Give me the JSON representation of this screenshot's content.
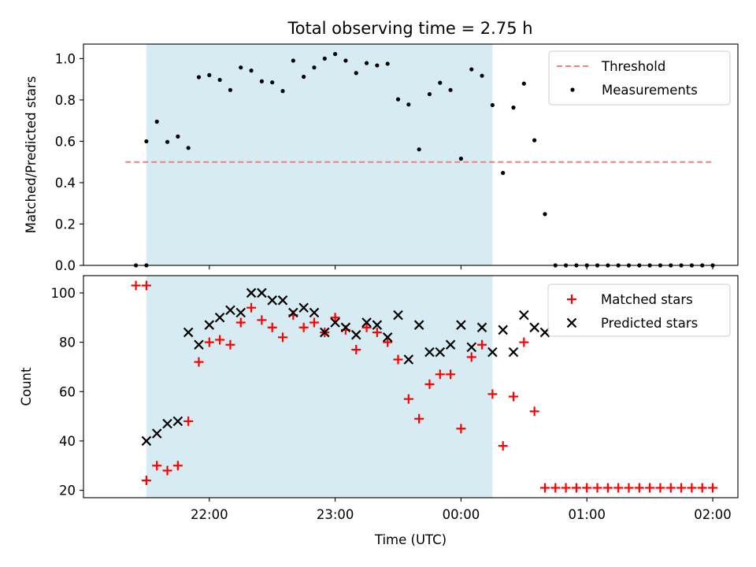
{
  "title": "Total observing time = 2.75 h",
  "chart_data": [
    {
      "type": "scatter",
      "ylabel": "Matched/Predicted stars",
      "ylim": [
        0,
        1.07
      ],
      "yticks": [
        0.0,
        0.2,
        0.4,
        0.6,
        0.8,
        1.0
      ],
      "ytick_labels": [
        "0.0",
        "0.2",
        "0.4",
        "0.6",
        "0.8",
        "1.0"
      ],
      "xticks": [
        "22:00",
        "23:00",
        "00:00",
        "01:00",
        "02:00"
      ],
      "xtick_hours": [
        22,
        23,
        24,
        25,
        26
      ],
      "xlim_hours": [
        21.0,
        26.2
      ],
      "shaded_span_hours": [
        21.5,
        24.25
      ],
      "shade_color": "#add8e6",
      "legend_position": "upper right",
      "threshold": {
        "name": "Threshold",
        "value": 0.5,
        "x_range_hours": [
          21.333,
          26.0
        ],
        "color": "#f08080"
      },
      "series": [
        {
          "name": "Measurements",
          "color": "#000000",
          "x": [
            "21:25",
            "21:30",
            "21:30",
            "21:35",
            "21:40",
            "21:45",
            "21:50",
            "21:55",
            "22:00",
            "22:05",
            "22:10",
            "22:15",
            "22:20",
            "22:25",
            "22:30",
            "22:35",
            "22:40",
            "22:45",
            "22:50",
            "22:55",
            "23:00",
            "23:05",
            "23:10",
            "23:15",
            "23:20",
            "23:25",
            "23:30",
            "23:35",
            "23:40",
            "23:45",
            "23:50",
            "23:55",
            "00:00",
            "00:05",
            "00:10",
            "00:15",
            "00:20",
            "00:25",
            "00:30",
            "00:35",
            "00:40",
            "00:45",
            "00:50",
            "00:55",
            "01:00",
            "01:05",
            "01:10",
            "01:15",
            "01:20",
            "01:25",
            "01:30",
            "01:35",
            "01:40",
            "01:45",
            "01:50",
            "01:55",
            "02:00"
          ],
          "y": [
            0.0,
            0.0,
            0.6,
            0.695,
            0.597,
            0.623,
            0.568,
            0.91,
            0.92,
            0.897,
            0.848,
            0.957,
            0.942,
            0.89,
            0.885,
            0.843,
            0.99,
            0.912,
            0.957,
            1.0,
            1.022,
            0.99,
            0.93,
            0.978,
            0.967,
            0.975,
            0.803,
            0.778,
            0.561,
            0.828,
            0.883,
            0.848,
            0.516,
            0.948,
            0.917,
            0.775,
            0.447,
            0.763,
            0.879,
            0.605,
            0.248,
            0.0,
            0.0,
            0.0,
            0.0,
            0.0,
            0.0,
            0.0,
            0.0,
            0.0,
            0.0,
            0.0,
            0.0,
            0.0,
            0.0,
            0.0,
            0.0
          ]
        }
      ]
    },
    {
      "type": "scatter",
      "xlabel": "Time (UTC)",
      "ylabel": "Count",
      "ylim": [
        17,
        107
      ],
      "yticks": [
        20,
        40,
        60,
        80,
        100
      ],
      "ytick_labels": [
        "20",
        "40",
        "60",
        "80",
        "100"
      ],
      "xticks": [
        "22:00",
        "23:00",
        "00:00",
        "01:00",
        "02:00"
      ],
      "xtick_hours": [
        22,
        23,
        24,
        25,
        26
      ],
      "xlim_hours": [
        21.0,
        26.2
      ],
      "shaded_span_hours": [
        21.5,
        24.25
      ],
      "shade_color": "#add8e6",
      "legend_position": "upper right",
      "series": [
        {
          "name": "Matched stars",
          "marker": "+",
          "color": "#ff0000",
          "x": [
            "21:25",
            "21:30",
            "21:30",
            "21:35",
            "21:40",
            "21:45",
            "21:50",
            "21:55",
            "22:00",
            "22:05",
            "22:10",
            "22:15",
            "22:20",
            "22:25",
            "22:30",
            "22:35",
            "22:40",
            "22:45",
            "22:50",
            "22:55",
            "23:00",
            "23:05",
            "23:10",
            "23:15",
            "23:20",
            "23:25",
            "23:30",
            "23:35",
            "23:40",
            "23:45",
            "23:50",
            "23:55",
            "00:00",
            "00:05",
            "00:10",
            "00:15",
            "00:20",
            "00:25",
            "00:30",
            "00:35",
            "00:40",
            "00:45",
            "00:50",
            "00:55",
            "01:00",
            "01:05",
            "01:10",
            "01:15",
            "01:20",
            "01:25",
            "01:30",
            "01:35",
            "01:40",
            "01:45",
            "01:50",
            "01:55",
            "02:00"
          ],
          "y": [
            103,
            103,
            24,
            30,
            28,
            30,
            48,
            72,
            80,
            81,
            79,
            88,
            94,
            89,
            86,
            82,
            91,
            86,
            88,
            84,
            90,
            85,
            77,
            86,
            84,
            80,
            73,
            57,
            49,
            63,
            67,
            67,
            45,
            74,
            79,
            59,
            38,
            58,
            80,
            52,
            21,
            21,
            21,
            21,
            21,
            21,
            21,
            21,
            21,
            21,
            21,
            21,
            21,
            21,
            21,
            21,
            21
          ]
        },
        {
          "name": "Predicted stars",
          "marker": "x",
          "color": "#000000",
          "x": [
            "21:30",
            "21:35",
            "21:40",
            "21:45",
            "21:50",
            "21:55",
            "22:00",
            "22:05",
            "22:10",
            "22:15",
            "22:20",
            "22:25",
            "22:30",
            "22:35",
            "22:40",
            "22:45",
            "22:50",
            "22:55",
            "23:00",
            "23:05",
            "23:10",
            "23:15",
            "23:20",
            "23:25",
            "23:30",
            "23:35",
            "23:40",
            "23:45",
            "23:50",
            "23:55",
            "00:00",
            "00:05",
            "00:10",
            "00:15",
            "00:20",
            "00:25",
            "00:30",
            "00:35",
            "00:40"
          ],
          "y": [
            40,
            43,
            47,
            48,
            84,
            79,
            87,
            90,
            93,
            92,
            100,
            100,
            97,
            97,
            92,
            94,
            92,
            84,
            88,
            86,
            83,
            88,
            87,
            82,
            91,
            73,
            87,
            76,
            76,
            79,
            87,
            78,
            86,
            76,
            85,
            76,
            91,
            86,
            84
          ]
        }
      ]
    }
  ]
}
